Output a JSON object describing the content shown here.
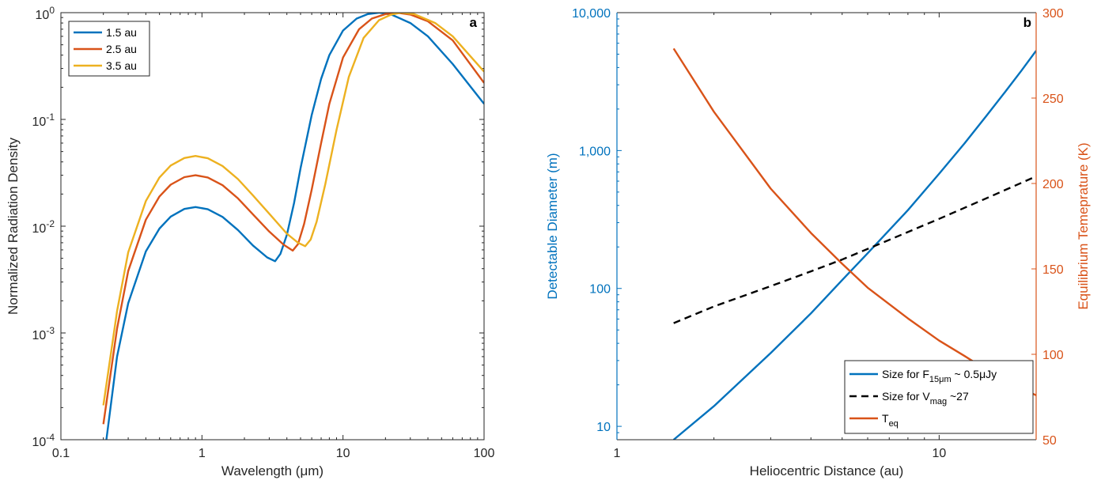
{
  "chart_data": [
    {
      "type": "line",
      "panel_label": "a",
      "xlabel": "Wavelength (μm)",
      "ylabel": "Normalized Radiation Density",
      "xscale": "log",
      "yscale": "log",
      "xlim": [
        0.1,
        100
      ],
      "ylim": [
        0.0001,
        1
      ],
      "xticks": [
        "0.1",
        "1",
        "10",
        "100"
      ],
      "yticks": [
        "10^-4",
        "10^-3",
        "10^-2",
        "10^-1",
        "10^0"
      ],
      "legend_position": "top-left",
      "series": [
        {
          "name": "1.5 au",
          "color": "#0072BD",
          "x": [
            0.21,
            0.25,
            0.3,
            0.4,
            0.5,
            0.6,
            0.75,
            0.9,
            1.1,
            1.4,
            1.8,
            2.3,
            2.9,
            3.3,
            3.6,
            4,
            4.5,
            5,
            6,
            7,
            8,
            10,
            12.5,
            15,
            18,
            22,
            30,
            40,
            60,
            100
          ],
          "y": [
            0.0001,
            0.0006,
            0.0019,
            0.0058,
            0.0095,
            0.0123,
            0.0145,
            0.0151,
            0.0144,
            0.0122,
            0.0092,
            0.0066,
            0.0051,
            0.0047,
            0.0055,
            0.0083,
            0.0165,
            0.035,
            0.11,
            0.24,
            0.4,
            0.68,
            0.88,
            0.97,
            1.0,
            0.96,
            0.8,
            0.6,
            0.33,
            0.14
          ]
        },
        {
          "name": "2.5 au",
          "color": "#D95319",
          "x": [
            0.2,
            0.25,
            0.3,
            0.4,
            0.5,
            0.6,
            0.75,
            0.9,
            1.1,
            1.4,
            1.8,
            2.3,
            3,
            3.8,
            4.4,
            4.8,
            5.3,
            6,
            7,
            8,
            10,
            13,
            16,
            20,
            24,
            30,
            40,
            60,
            100
          ],
          "y": [
            0.00014,
            0.0011,
            0.0038,
            0.0115,
            0.019,
            0.0245,
            0.0288,
            0.03,
            0.0286,
            0.0242,
            0.0182,
            0.0129,
            0.0089,
            0.0067,
            0.0059,
            0.0068,
            0.0105,
            0.022,
            0.06,
            0.14,
            0.38,
            0.7,
            0.88,
            0.97,
            1.0,
            0.96,
            0.83,
            0.55,
            0.22
          ]
        },
        {
          "name": "3.5 au",
          "color": "#EDB120",
          "x": [
            0.2,
            0.25,
            0.3,
            0.4,
            0.5,
            0.6,
            0.75,
            0.9,
            1.1,
            1.4,
            1.8,
            2.3,
            3,
            4,
            4.8,
            5.4,
            5.9,
            6.5,
            7.5,
            9,
            11,
            14,
            18,
            22,
            26,
            32,
            45,
            60,
            100
          ],
          "y": [
            0.00021,
            0.0016,
            0.0057,
            0.0172,
            0.0286,
            0.037,
            0.0435,
            0.0455,
            0.0433,
            0.0366,
            0.0276,
            0.0194,
            0.0131,
            0.0085,
            0.007,
            0.0065,
            0.0075,
            0.011,
            0.025,
            0.08,
            0.25,
            0.58,
            0.85,
            0.96,
            1.0,
            0.97,
            0.8,
            0.6,
            0.28
          ]
        }
      ]
    },
    {
      "type": "line",
      "panel_label": "b",
      "xlabel": "Heliocentric Distance (au)",
      "ylabel": "Detectable Diameter (m)",
      "y2label": "Equilibrium Temeprature (K)",
      "xscale": "log",
      "yscale": "log",
      "xlim": [
        1,
        20
      ],
      "ylim": [
        8,
        10000
      ],
      "y2lim": [
        50,
        300
      ],
      "xticks": [
        "1",
        "10"
      ],
      "yticks": [
        "10",
        "100",
        "1,000",
        "10,000"
      ],
      "y2ticks": [
        "50",
        "100",
        "150",
        "200",
        "250",
        "300"
      ],
      "legend_position": "bottom-right",
      "legend": [
        {
          "text": "Size for F",
          "sub": "15μm",
          "tail": " ~ 0.5μJy",
          "style": "solid",
          "color": "#0072BD"
        },
        {
          "text": "Size for V",
          "sub": "mag",
          "tail": " ~27",
          "style": "dashed",
          "color": "#000000"
        },
        {
          "text": "T",
          "sub": "eq",
          "tail": "",
          "style": "solid",
          "color": "#D95319"
        }
      ],
      "series": [
        {
          "name": "Size for F15μm ~ 0.5μJy",
          "axis": "left",
          "color": "#0072BD",
          "x": [
            1.5,
            2,
            3,
            4,
            5,
            6,
            7,
            8,
            10,
            12,
            14,
            16,
            18,
            20
          ],
          "y": [
            8,
            14,
            34,
            66,
            115,
            180,
            265,
            370,
            680,
            1130,
            1780,
            2650,
            3800,
            5300
          ]
        },
        {
          "name": "Size for Vmag ~27",
          "axis": "left",
          "color": "#000000",
          "dashed": true,
          "x": [
            1.5,
            2,
            3,
            4,
            5,
            7,
            10,
            14,
            20
          ],
          "y": [
            56,
            74,
            104,
            133,
            162,
            225,
            320,
            450,
            650
          ]
        },
        {
          "name": "Teq",
          "axis": "right",
          "color": "#D95319",
          "x": [
            1.5,
            2,
            3,
            4,
            5,
            6,
            8,
            10,
            12,
            14,
            16,
            18,
            20
          ],
          "y": [
            279,
            242,
            197,
            171,
            153,
            139,
            121,
            108,
            99,
            91,
            85,
            80,
            76
          ]
        }
      ]
    }
  ]
}
